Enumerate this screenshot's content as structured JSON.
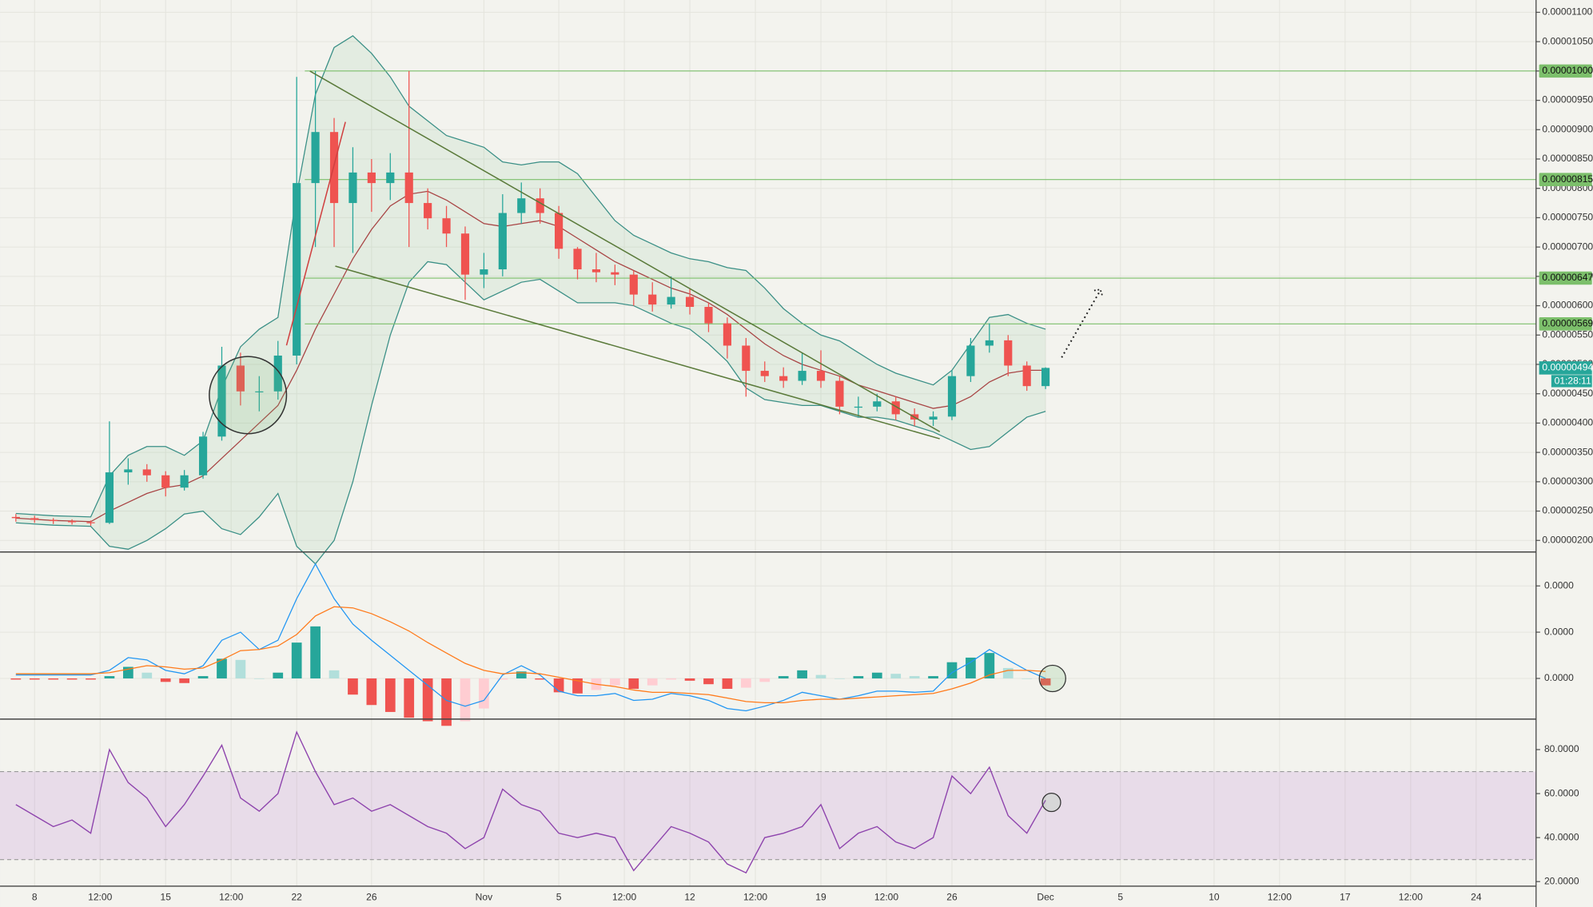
{
  "chart_data": [
    {
      "type": "candlestick",
      "x": [
        -1,
        0,
        1,
        2,
        3,
        4,
        5,
        6,
        7,
        8,
        9,
        10,
        11,
        12,
        13,
        14,
        15,
        16,
        17,
        18,
        19,
        20,
        21,
        22,
        23,
        24,
        25,
        26,
        27,
        28,
        29,
        30,
        31,
        32,
        33,
        34,
        35,
        36,
        37,
        38,
        39,
        40,
        41,
        42,
        43,
        44,
        45,
        46,
        47,
        48,
        49,
        50,
        51,
        52,
        53,
        54
      ],
      "candles": [
        [
          2.4e-06,
          2.45e-06,
          2.32e-06,
          2.38e-06
        ],
        [
          2.38e-06,
          2.42e-06,
          2.3e-06,
          2.35e-06
        ],
        [
          2.35e-06,
          2.38e-06,
          2.28e-06,
          2.33e-06
        ],
        [
          2.33e-06,
          2.36e-06,
          2.27e-06,
          2.31e-06
        ],
        [
          2.31e-06,
          2.34e-06,
          2.25e-06,
          2.3e-06
        ],
        [
          2.3e-06,
          4.03e-06,
          2.28e-06,
          3.16e-06
        ],
        [
          3.16e-06,
          3.4e-06,
          2.95e-06,
          3.21e-06
        ],
        [
          3.21e-06,
          3.3e-06,
          3e-06,
          3.11e-06
        ],
        [
          3.11e-06,
          3.18e-06,
          2.75e-06,
          2.9e-06
        ],
        [
          2.9e-06,
          3.2e-06,
          2.85e-06,
          3.11e-06
        ],
        [
          3.11e-06,
          3.85e-06,
          3.05e-06,
          3.77e-06
        ],
        [
          3.77e-06,
          5.3e-06,
          3.7e-06,
          4.98e-06
        ],
        [
          4.98e-06,
          5.2e-06,
          4.3e-06,
          4.54e-06
        ],
        [
          4.54e-06,
          4.8e-06,
          4.2e-06,
          4.54e-06
        ],
        [
          4.54e-06,
          5.4e-06,
          4.4e-06,
          5.15e-06
        ],
        [
          5.15e-06,
          9.9e-06,
          5e-06,
          8.09e-06
        ],
        [
          8.09e-06,
          1e-05,
          7e-06,
          8.96e-06
        ],
        [
          8.96e-06,
          9.2e-06,
          7e-06,
          7.75e-06
        ],
        [
          7.75e-06,
          8.7e-06,
          6.9e-06,
          8.27e-06
        ],
        [
          8.27e-06,
          8.5e-06,
          7.6e-06,
          8.09e-06
        ],
        [
          8.09e-06,
          8.6e-06,
          7.8e-06,
          8.27e-06
        ],
        [
          8.27e-06,
          1e-05,
          7e-06,
          7.75e-06
        ],
        [
          7.75e-06,
          8e-06,
          7.3e-06,
          7.49e-06
        ],
        [
          7.49e-06,
          7.7e-06,
          7e-06,
          7.23e-06
        ],
        [
          7.23e-06,
          7.35e-06,
          6.1e-06,
          6.53e-06
        ],
        [
          6.53e-06,
          6.9e-06,
          6.3e-06,
          6.62e-06
        ],
        [
          6.62e-06,
          7.9e-06,
          6.5e-06,
          7.58e-06
        ],
        [
          7.58e-06,
          8.1e-06,
          7.4e-06,
          7.83e-06
        ],
        [
          7.83e-06,
          8e-06,
          7.4e-06,
          7.58e-06
        ],
        [
          7.58e-06,
          7.7e-06,
          6.8e-06,
          6.97e-06
        ],
        [
          6.97e-06,
          7e-06,
          6.45e-06,
          6.62e-06
        ],
        [
          6.62e-06,
          6.9e-06,
          6.4e-06,
          6.57e-06
        ],
        [
          6.57e-06,
          6.7e-06,
          6.35e-06,
          6.53e-06
        ],
        [
          6.53e-06,
          6.6e-06,
          6e-06,
          6.19e-06
        ],
        [
          6.19e-06,
          6.4e-06,
          5.9e-06,
          6.02e-06
        ],
        [
          6.02e-06,
          6.5e-06,
          5.95e-06,
          6.15e-06
        ],
        [
          6.15e-06,
          6.3e-06,
          5.85e-06,
          5.98e-06
        ],
        [
          5.98e-06,
          6.05e-06,
          5.55e-06,
          5.7e-06
        ],
        [
          5.7e-06,
          5.8e-06,
          5.1e-06,
          5.32e-06
        ],
        [
          5.32e-06,
          5.45e-06,
          4.45e-06,
          4.89e-06
        ],
        [
          4.89e-06,
          5.05e-06,
          4.7e-06,
          4.8e-06
        ],
        [
          4.8e-06,
          4.95e-06,
          4.6e-06,
          4.72e-06
        ],
        [
          4.72e-06,
          5.2e-06,
          4.65e-06,
          4.89e-06
        ],
        [
          4.89e-06,
          5.24e-06,
          4.6e-06,
          4.72e-06
        ],
        [
          4.72e-06,
          4.8e-06,
          4.15e-06,
          4.28e-06
        ],
        [
          4.28e-06,
          4.45e-06,
          4.1e-06,
          4.28e-06
        ],
        [
          4.28e-06,
          4.5e-06,
          4.2e-06,
          4.37e-06
        ],
        [
          4.37e-06,
          4.45e-06,
          4.05e-06,
          4.15e-06
        ],
        [
          4.15e-06,
          4.25e-06,
          3.95e-06,
          4.06e-06
        ],
        [
          4.06e-06,
          4.2e-06,
          3.95e-06,
          4.11e-06
        ],
        [
          4.11e-06,
          4.9e-06,
          4.05e-06,
          4.8e-06
        ],
        [
          4.8e-06,
          5.45e-06,
          4.7e-06,
          5.32e-06
        ],
        [
          5.32e-06,
          5.7e-06,
          5.2e-06,
          5.41e-06
        ],
        [
          5.41e-06,
          5.5e-06,
          4.8e-06,
          4.98e-06
        ],
        [
          4.98e-06,
          5.05e-06,
          4.55e-06,
          4.63e-06
        ],
        [
          4.63e-06,
          4.95e-06,
          4.58e-06,
          4.94e-06
        ]
      ],
      "up_color": "#26a69a",
      "down_color": "#ef5350",
      "bollinger": {
        "color": "#3a8f86",
        "basis_color": "#a84444",
        "fill": "rgba(120,190,140,0.13)",
        "upper": [
          2.46e-06,
          2.44e-06,
          2.42e-06,
          2.41e-06,
          2.4e-06,
          3.1e-06,
          3.45e-06,
          3.6e-06,
          3.6e-06,
          3.45e-06,
          3.7e-06,
          4.6e-06,
          5.3e-06,
          5.6e-06,
          5.8e-06,
          7.9e-06,
          9.6e-06,
          1.04e-05,
          1.06e-05,
          1.03e-05,
          9.9e-06,
          9.4e-06,
          9.15e-06,
          8.9e-06,
          8.8e-06,
          8.7e-06,
          8.45e-06,
          8.4e-06,
          8.45e-06,
          8.45e-06,
          8.25e-06,
          7.85e-06,
          7.45e-06,
          7.2e-06,
          7.05e-06,
          6.9e-06,
          6.8e-06,
          6.75e-06,
          6.65e-06,
          6.6e-06,
          6.3e-06,
          5.95e-06,
          5.7e-06,
          5.5e-06,
          5.4e-06,
          5.2e-06,
          5e-06,
          4.85e-06,
          4.75e-06,
          4.65e-06,
          4.9e-06,
          5.35e-06,
          5.8e-06,
          5.85e-06,
          5.7e-06,
          5.6e-06
        ],
        "basis": [
          2.38e-06,
          2.36e-06,
          2.34e-06,
          2.33e-06,
          2.32e-06,
          2.5e-06,
          2.65e-06,
          2.8e-06,
          2.9e-06,
          2.95e-06,
          3.1e-06,
          3.4e-06,
          3.7e-06,
          4e-06,
          4.3e-06,
          4.9e-06,
          5.6e-06,
          6.2e-06,
          6.8e-06,
          7.3e-06,
          7.7e-06,
          7.9e-06,
          7.95e-06,
          7.8e-06,
          7.6e-06,
          7.4e-06,
          7.35e-06,
          7.4e-06,
          7.45e-06,
          7.35e-06,
          7.15e-06,
          6.95e-06,
          6.75e-06,
          6.6e-06,
          6.45e-06,
          6.3e-06,
          6.2e-06,
          6.05e-06,
          5.85e-06,
          5.6e-06,
          5.35e-06,
          5.15e-06,
          5e-06,
          4.9e-06,
          4.8e-06,
          4.65e-06,
          4.55e-06,
          4.45e-06,
          4.35e-06,
          4.25e-06,
          4.3e-06,
          4.45e-06,
          4.7e-06,
          4.85e-06,
          4.9e-06,
          4.9e-06
        ],
        "lower": [
          2.3e-06,
          2.28e-06,
          2.26e-06,
          2.25e-06,
          2.24e-06,
          1.9e-06,
          1.85e-06,
          2e-06,
          2.2e-06,
          2.45e-06,
          2.5e-06,
          2.2e-06,
          2.1e-06,
          2.4e-06,
          2.8e-06,
          1.9e-06,
          1.6e-06,
          2e-06,
          3e-06,
          4.3e-06,
          5.5e-06,
          6.4e-06,
          6.75e-06,
          6.7e-06,
          6.4e-06,
          6.1e-06,
          6.25e-06,
          6.4e-06,
          6.45e-06,
          6.25e-06,
          6.05e-06,
          6.05e-06,
          6.05e-06,
          6e-06,
          5.85e-06,
          5.7e-06,
          5.6e-06,
          5.35e-06,
          5.05e-06,
          4.6e-06,
          4.4e-06,
          4.35e-06,
          4.3e-06,
          4.3e-06,
          4.2e-06,
          4.1e-06,
          4.1e-06,
          4.05e-06,
          3.95e-06,
          3.85e-06,
          3.7e-06,
          3.55e-06,
          3.6e-06,
          3.85e-06,
          4.1e-06,
          4.2e-06
        ]
      },
      "levels": [
        {
          "value": 1e-05,
          "label": "0.00001000"
        },
        {
          "value": 8.15e-06,
          "label": "0.00000815"
        },
        {
          "value": 6.47e-06,
          "label": "0.00000647"
        },
        {
          "value": 5.69e-06,
          "label": "0.00000569"
        }
      ],
      "level_color": "#7cbf6b",
      "last_price": {
        "value": 4.94e-06,
        "label": "0.00000494"
      },
      "countdown": "01:28:11",
      "xlim": [
        -1.845,
        80.2
      ],
      "xticks": [
        {
          "value": 0,
          "label": "8"
        },
        {
          "value": 3.5,
          "label": "12:00"
        },
        {
          "value": 7,
          "label": "15"
        },
        {
          "value": 10.5,
          "label": "12:00"
        },
        {
          "value": 14,
          "label": "22"
        },
        {
          "value": 18,
          "label": "26"
        },
        {
          "value": 24,
          "label": "Nov"
        },
        {
          "value": 28,
          "label": "5"
        },
        {
          "value": 31.5,
          "label": "12:00"
        },
        {
          "value": 35,
          "label": "12"
        },
        {
          "value": 38.5,
          "label": "12:00"
        },
        {
          "value": 42,
          "label": "19"
        },
        {
          "value": 45.5,
          "label": "12:00"
        },
        {
          "value": 49,
          "label": "26"
        },
        {
          "value": 54,
          "label": "Dec"
        },
        {
          "value": 58,
          "label": "5"
        },
        {
          "value": 63,
          "label": "10"
        },
        {
          "value": 66.5,
          "label": "12:00"
        },
        {
          "value": 70,
          "label": "17"
        },
        {
          "value": 73.5,
          "label": "12:00"
        },
        {
          "value": 77,
          "label": "24"
        }
      ],
      "ylim": [
        1.811e-06,
        1.121e-05
      ],
      "yticks": [
        {
          "value": 1.1e-05,
          "label": "0.00001100"
        },
        {
          "value": 1.05e-05,
          "label": "0.00001050"
        },
        {
          "value": 1e-05,
          "label": "0.00001000"
        },
        {
          "value": 9.5e-06,
          "label": "0.00000950"
        },
        {
          "value": 9e-06,
          "label": "0.00000900"
        },
        {
          "value": 8.5e-06,
          "label": "0.00000850"
        },
        {
          "value": 8e-06,
          "label": "0.00000800"
        },
        {
          "value": 7.5e-06,
          "label": "0.00000750"
        },
        {
          "value": 7e-06,
          "label": "0.00000700"
        },
        {
          "value": 6.5e-06,
          "label": "0.00000650"
        },
        {
          "value": 6e-06,
          "label": "0.00000600"
        },
        {
          "value": 5.5e-06,
          "label": "0.00000550"
        },
        {
          "value": 5e-06,
          "label": "0.00000500"
        },
        {
          "value": 4.5e-06,
          "label": "0.00000450"
        },
        {
          "value": 4e-06,
          "label": "0.00000400"
        },
        {
          "value": 3.5e-06,
          "label": "0.00000350"
        },
        {
          "value": 3e-06,
          "label": "0.00000300"
        },
        {
          "value": 2.5e-06,
          "label": "0.00000250"
        },
        {
          "value": 2e-06,
          "label": "0.00000200"
        }
      ],
      "grid": true
    },
    {
      "type": "macd",
      "macd": [
        3e-08,
        3e-08,
        3e-08,
        3e-08,
        3e-08,
        7e-08,
        1.8e-07,
        1.6e-07,
        7e-08,
        4e-08,
        1.1e-07,
        3.3e-07,
        4e-07,
        2.5e-07,
        3.3e-07,
        6.9e-07,
        9.9e-07,
        6.9e-07,
        4.7e-07,
        3.3e-07,
        2e-07,
        7e-08,
        -6e-08,
        -1.9e-07,
        -2.4e-07,
        -1.9e-07,
        3e-08,
        1.1e-07,
        3e-08,
        -1.1e-07,
        -1.5e-07,
        -1.5e-07,
        -1.3e-07,
        -1.9e-07,
        -1.8e-07,
        -1.3e-07,
        -1.5e-07,
        -1.9e-07,
        -2.6e-07,
        -2.8e-07,
        -2.4e-07,
        -1.9e-07,
        -1.2e-07,
        -1.5e-07,
        -1.8e-07,
        -1.5e-07,
        -1.1e-07,
        -1.1e-07,
        -1.2e-07,
        -1.1e-07,
        5e-08,
        1.4e-07,
        2.5e-07,
        1.6e-07,
        7e-08,
        0
      ],
      "signal": [
        4e-08,
        4e-08,
        4e-08,
        4e-08,
        4e-08,
        5e-08,
        8e-08,
        1.1e-07,
        1e-07,
        8e-08,
        9e-08,
        1.6e-07,
        2.4e-07,
        2.5e-07,
        2.8e-07,
        3.8e-07,
        5.4e-07,
        6.2e-07,
        6.1e-07,
        5.6e-07,
        4.9e-07,
        4.1e-07,
        3.1e-07,
        2.2e-07,
        1.3e-07,
        7e-08,
        4e-08,
        5e-08,
        4e-08,
        1e-08,
        -2e-08,
        -5e-08,
        -7e-08,
        -1e-07,
        -1.2e-07,
        -1.2e-07,
        -1.3e-07,
        -1.4e-07,
        -1.7e-07,
        -2e-07,
        -2.1e-07,
        -2.1e-07,
        -1.9e-07,
        -1.8e-07,
        -1.8e-07,
        -1.7e-07,
        -1.6e-07,
        -1.5e-07,
        -1.4e-07,
        -1.3e-07,
        -9e-08,
        -4e-08,
        3e-08,
        7e-08,
        7e-08,
        6e-08
      ],
      "histogram": [
        -1e-08,
        -1e-08,
        -1e-08,
        -1e-08,
        -1e-08,
        2e-08,
        1e-07,
        5e-08,
        -3e-08,
        -4e-08,
        2e-08,
        1.7e-07,
        1.6e-07,
        0,
        5e-08,
        3.1e-07,
        4.5e-07,
        7e-08,
        -1.4e-07,
        -2.3e-07,
        -2.9e-07,
        -3.4e-07,
        -3.7e-07,
        -4.1e-07,
        -3.7e-07,
        -2.6e-07,
        -1e-08,
        6e-08,
        -1e-08,
        -1.2e-07,
        -1.3e-07,
        -1e-07,
        -6e-08,
        -9e-08,
        -6e-08,
        -1e-08,
        -2e-08,
        -5e-08,
        -9e-08,
        -8e-08,
        -3e-08,
        2e-08,
        7e-08,
        3e-08,
        0,
        2e-08,
        5e-08,
        4e-08,
        2e-08,
        2e-08,
        1.4e-07,
        1.8e-07,
        2.2e-07,
        9e-08,
        0,
        -6e-08
      ],
      "macd_color": "#2196f3",
      "signal_color": "#ff7a1a",
      "ylim": [
        -3.43e-07,
        1.08e-06
      ],
      "yticks": [
        {
          "value": 8e-07,
          "label": "0.0000"
        },
        {
          "value": 4e-07,
          "label": "0.0000"
        },
        {
          "value": 0,
          "label": "0.0000"
        }
      ]
    },
    {
      "type": "rsi",
      "values": [
        55,
        50,
        45,
        48,
        42,
        80,
        65,
        58,
        45,
        55,
        68,
        82,
        58,
        52,
        60,
        88,
        70,
        55,
        58,
        52,
        55,
        50,
        45,
        42,
        35,
        40,
        62,
        55,
        52,
        42,
        40,
        42,
        40,
        25,
        35,
        45,
        42,
        38,
        28,
        24,
        40,
        42,
        45,
        55,
        35,
        42,
        45,
        38,
        35,
        40,
        68,
        60,
        72,
        50,
        42,
        57
      ],
      "color": "#8e44ad",
      "band": [
        70,
        30
      ],
      "band_fill": "rgba(155,60,200,0.12)",
      "ylim": [
        18.15,
        93.4
      ],
      "yticks": [
        {
          "value": 80,
          "label": "80.0000"
        },
        {
          "value": 60,
          "label": "60.0000"
        },
        {
          "value": 40,
          "label": "40.0000"
        },
        {
          "value": 20,
          "label": "20.0000"
        }
      ]
    }
  ]
}
